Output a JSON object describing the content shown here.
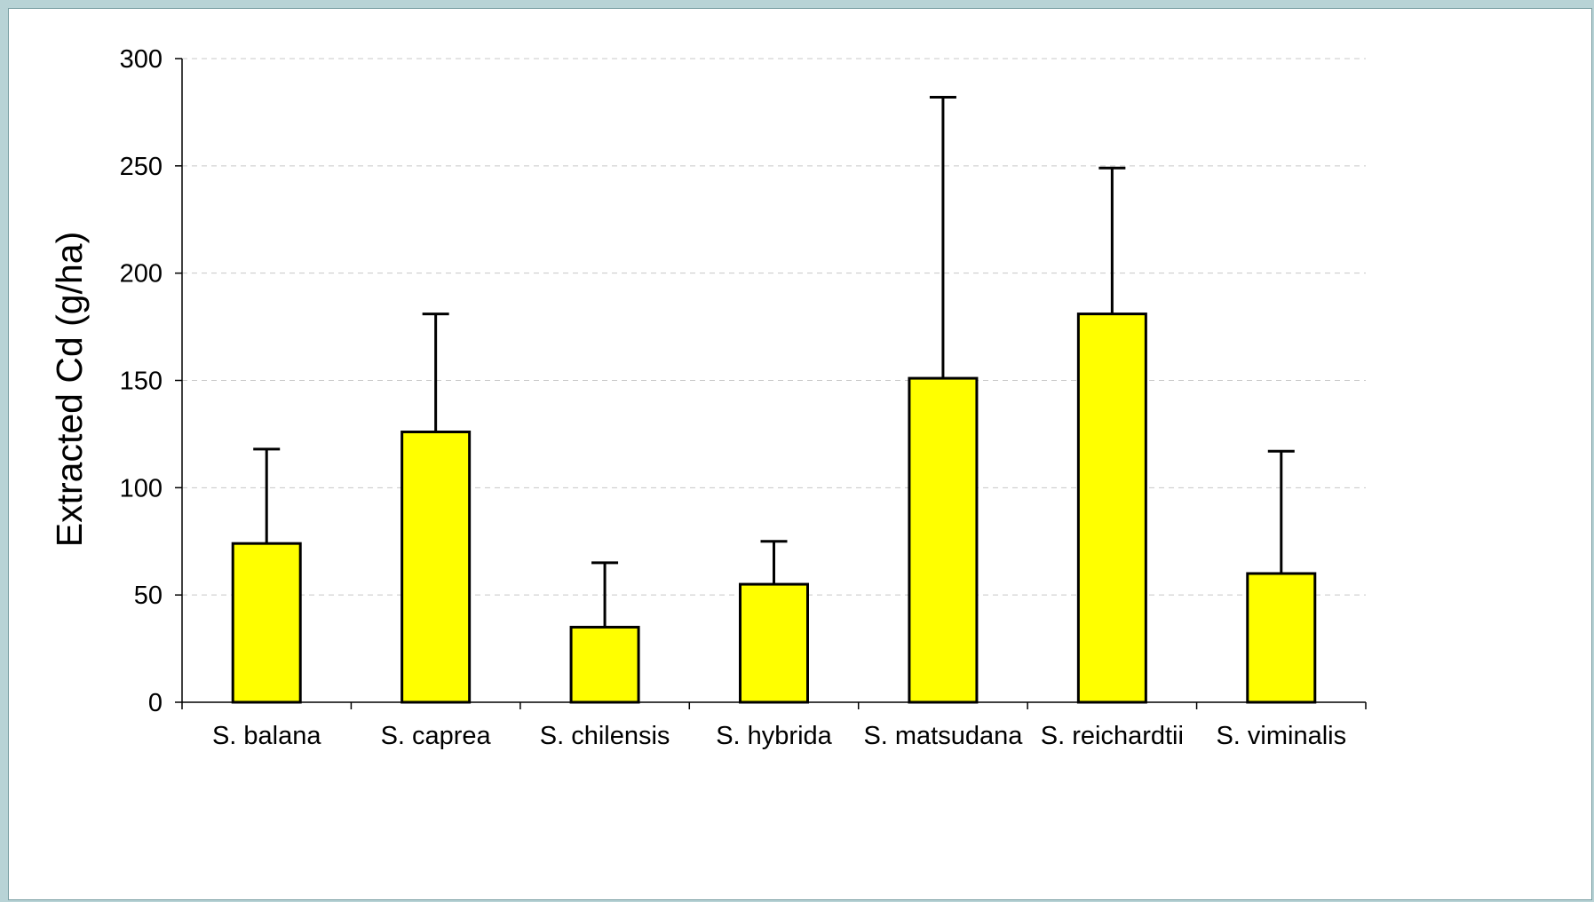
{
  "chart_data": {
    "type": "bar",
    "title": "",
    "xlabel": "",
    "ylabel": "Extracted Cd (g/ha)",
    "ylim": [
      0,
      300
    ],
    "yticks": [
      0,
      50,
      100,
      150,
      200,
      250,
      300
    ],
    "grid": true,
    "categories": [
      "S. balana",
      "S. caprea",
      "S. chilensis",
      "S. hybrida",
      "S. matsudana",
      "S. reichardtii",
      "S. viminalis"
    ],
    "values": [
      74,
      126,
      35,
      55,
      151,
      181,
      60
    ],
    "error_upper": [
      44,
      55,
      30,
      20,
      131,
      68,
      57
    ],
    "bar_color": "#ffff00",
    "bar_edge_color": "#000000"
  }
}
